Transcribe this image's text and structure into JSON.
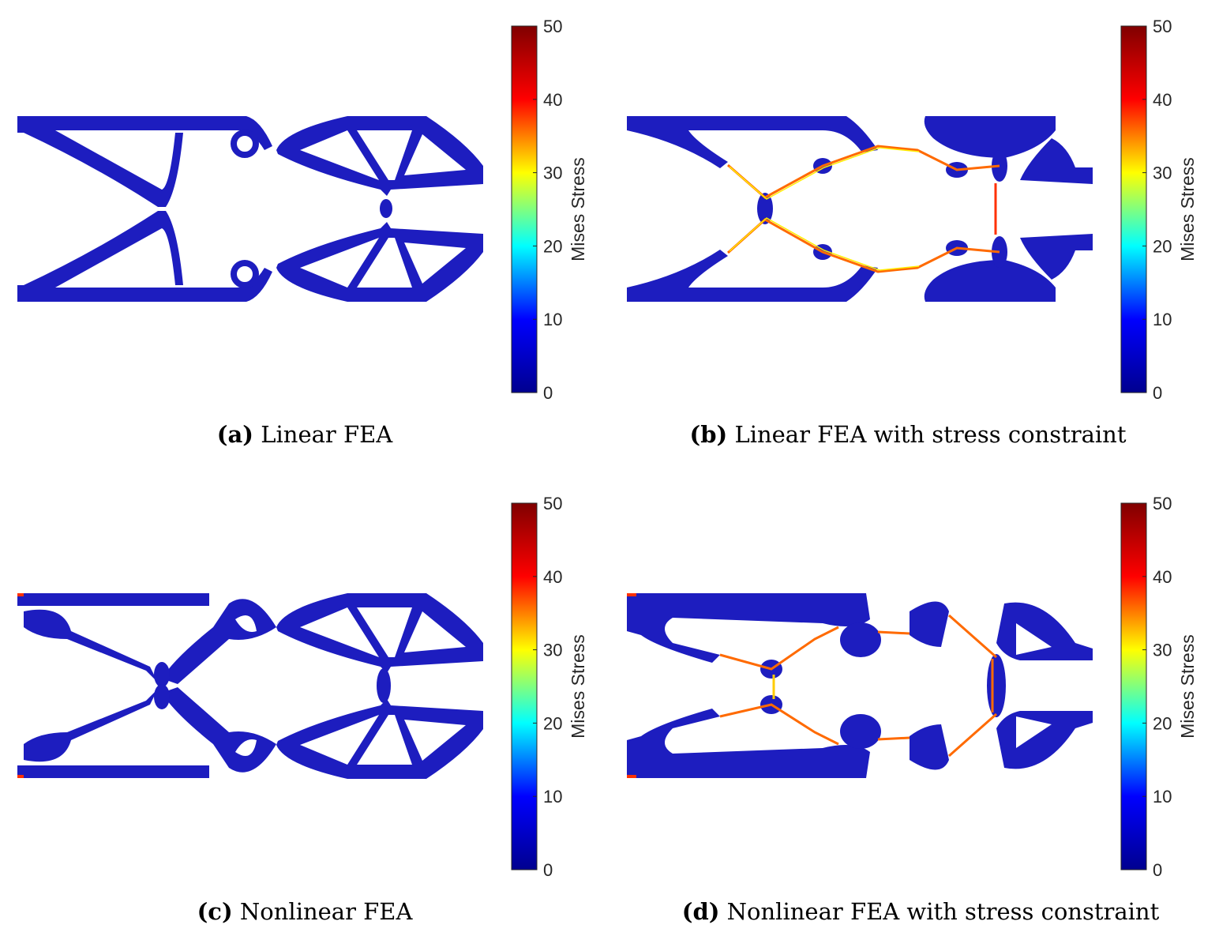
{
  "figure": {
    "panels": [
      {
        "tag": "(a)",
        "caption": "Linear FEA",
        "structure": "truss-a"
      },
      {
        "tag": "(b)",
        "caption": "Linear FEA with stress constraint",
        "structure": "truss-b"
      },
      {
        "tag": "(c)",
        "caption": "Nonlinear FEA",
        "structure": "truss-c"
      },
      {
        "tag": "(d)",
        "caption": "Nonlinear FEA with stress constraint",
        "structure": "truss-d"
      }
    ],
    "colorbar": {
      "title": "Mises Stress",
      "min": 0,
      "max": 50,
      "ticks": [
        "0",
        "10",
        "20",
        "30",
        "40",
        "50"
      ],
      "colormap": "jet",
      "colors": [
        "#00008f",
        "#0000ff",
        "#00ffff",
        "#ffff00",
        "#ff0000",
        "#800000"
      ]
    },
    "structure_color": "#1d1dbf"
  }
}
